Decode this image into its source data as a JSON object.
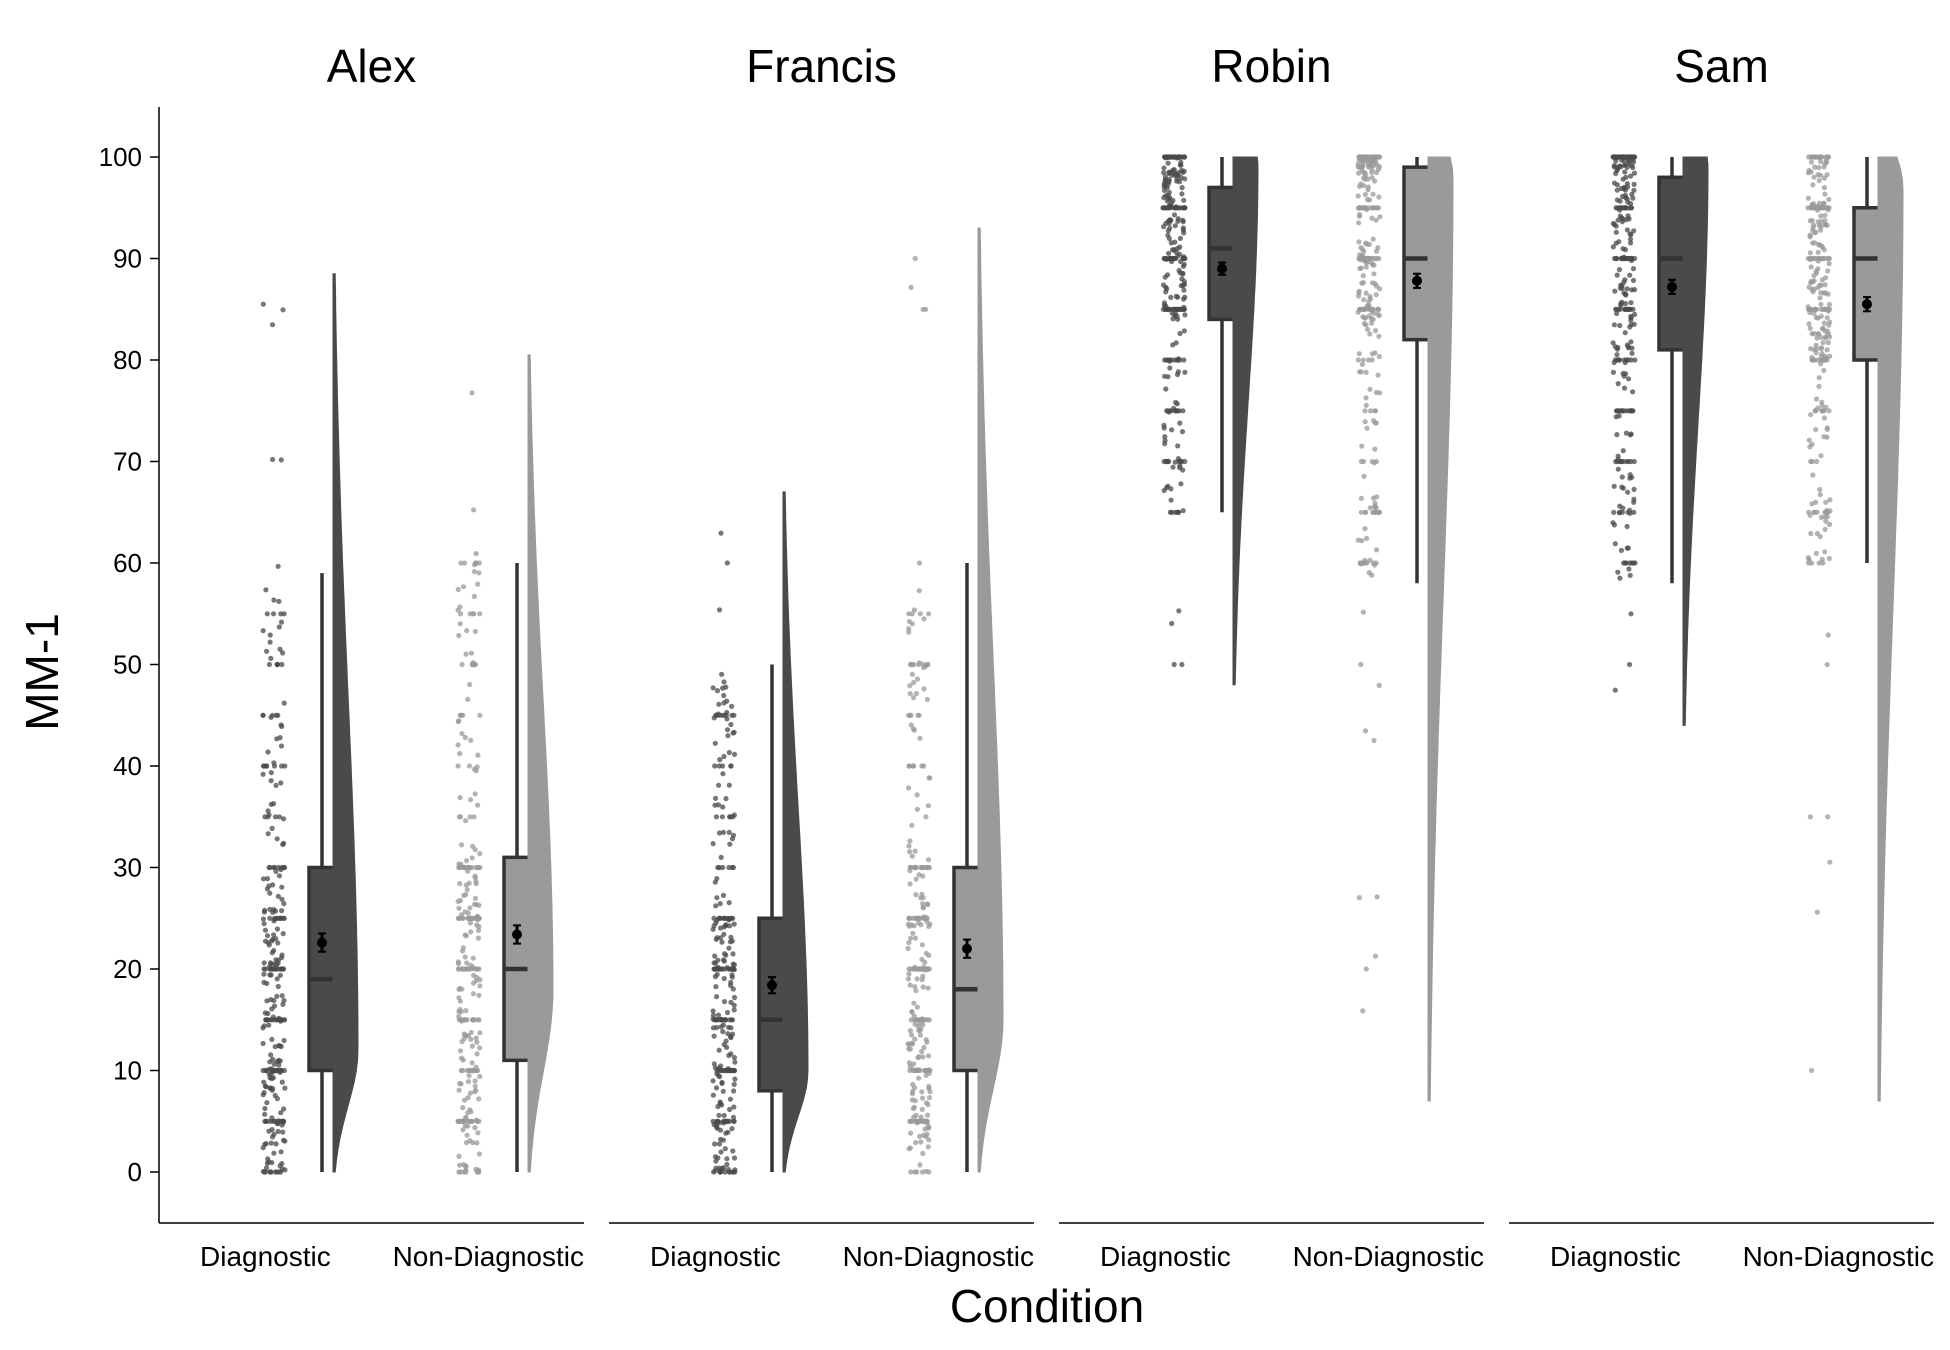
{
  "chart_data": {
    "type": "raincloud",
    "xlabel": "Condition",
    "ylabel": "MM-1",
    "ylim": [
      -5,
      105
    ],
    "yticks": [
      0,
      10,
      20,
      30,
      40,
      50,
      60,
      70,
      80,
      90,
      100
    ],
    "categories": [
      "Diagnostic",
      "Non-Diagnostic"
    ],
    "colors": {
      "Diagnostic": "#4a4a4a",
      "Non-Diagnostic": "#9a9a9a",
      "mean": "#000000"
    },
    "grid": false,
    "legend": "none",
    "panels": [
      {
        "title": "Alex",
        "groups": [
          {
            "condition": "Diagnostic",
            "box": {
              "q1": 10,
              "median": 19,
              "q3": 30,
              "whisker_low": 0,
              "whisker_high": 59
            },
            "mean": 22.6,
            "mean_se": 0.9,
            "density_range": [
              0,
              88.5
            ],
            "density_mode": 12
          },
          {
            "condition": "Non-Diagnostic",
            "box": {
              "q1": 11,
              "median": 20,
              "q3": 31,
              "whisker_low": 0,
              "whisker_high": 60
            },
            "mean": 23.4,
            "mean_se": 0.9,
            "density_range": [
              0,
              80.5
            ],
            "density_mode": 18
          }
        ]
      },
      {
        "title": "Francis",
        "groups": [
          {
            "condition": "Diagnostic",
            "box": {
              "q1": 8,
              "median": 15,
              "q3": 25,
              "whisker_low": 0,
              "whisker_high": 50
            },
            "mean": 18.4,
            "mean_se": 0.8,
            "density_range": [
              0,
              67
            ],
            "density_mode": 10
          },
          {
            "condition": "Non-Diagnostic",
            "box": {
              "q1": 10,
              "median": 18,
              "q3": 30,
              "whisker_low": 0,
              "whisker_high": 60
            },
            "mean": 22,
            "mean_se": 0.9,
            "density_range": [
              0,
              93
            ],
            "density_mode": 15
          }
        ]
      },
      {
        "title": "Robin",
        "groups": [
          {
            "condition": "Diagnostic",
            "box": {
              "q1": 84,
              "median": 91,
              "q3": 97,
              "whisker_low": 65,
              "whisker_high": 100
            },
            "mean": 89,
            "mean_se": 0.6,
            "density_range": [
              48,
              100
            ],
            "density_mode": 99
          },
          {
            "condition": "Non-Diagnostic",
            "box": {
              "q1": 82,
              "median": 90,
              "q3": 99,
              "whisker_low": 58,
              "whisker_high": 100
            },
            "mean": 87.8,
            "mean_se": 0.7,
            "density_range": [
              7,
              100
            ],
            "density_mode": 98
          }
        ]
      },
      {
        "title": "Sam",
        "groups": [
          {
            "condition": "Diagnostic",
            "box": {
              "q1": 81,
              "median": 90,
              "q3": 98,
              "whisker_low": 58,
              "whisker_high": 100
            },
            "mean": 87.2,
            "mean_se": 0.7,
            "density_range": [
              44,
              100
            ],
            "density_mode": 99
          },
          {
            "condition": "Non-Diagnostic",
            "box": {
              "q1": 80,
              "median": 90,
              "q3": 95,
              "whisker_low": 60,
              "whisker_high": 100
            },
            "mean": 85.5,
            "mean_se": 0.7,
            "density_range": [
              7,
              100
            ],
            "density_mode": 97
          }
        ]
      }
    ]
  }
}
